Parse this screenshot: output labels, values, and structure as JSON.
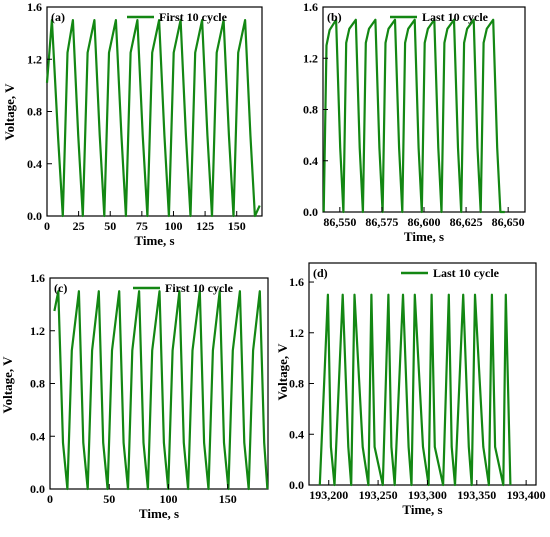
{
  "colors": {
    "series": "#138713",
    "axis": "#000000",
    "background": "#ffffff"
  },
  "chart_data": [
    {
      "type": "line",
      "panel_label": "(a)",
      "xlabel": "Time, s",
      "ylabel": "Voltage, V",
      "xlim": [
        0,
        170
      ],
      "ylim": [
        0,
        1.6
      ],
      "xticks": [
        0,
        25,
        50,
        75,
        100,
        125,
        150
      ],
      "xtick_labels": [
        "0",
        "25",
        "50",
        "75",
        "100",
        "125",
        "150"
      ],
      "yticks": [
        0,
        0.4,
        0.8,
        1.2,
        1.6
      ],
      "ytick_labels": [
        "0.0",
        "0.4",
        "0.8",
        "1.2",
        "1.6"
      ],
      "legend_position": "top-right",
      "series": [
        {
          "name": "First 10 cycle",
          "x": [
            0,
            3.9,
            8.8,
            12.5,
            16.2,
            20.5,
            24.7,
            28.3,
            32.1,
            37.5,
            41.7,
            45.3,
            49.0,
            54.5,
            58.8,
            62.4,
            66.1,
            71.5,
            75.7,
            79.4,
            83.2,
            88.6,
            92.8,
            96.4,
            100.2,
            105.6,
            109.8,
            113.5,
            117.2,
            122.6,
            126.8,
            130.5,
            134.2,
            139.6,
            143.8,
            147.5,
            151.2,
            156.6,
            160.8,
            164.4,
            168.2
          ],
          "y": [
            1.02,
            1.5,
            0.6,
            0.0,
            1.25,
            1.5,
            0.62,
            0.0,
            1.25,
            1.5,
            0.62,
            0.0,
            1.25,
            1.5,
            0.62,
            0.0,
            1.25,
            1.5,
            0.62,
            0.0,
            1.25,
            1.5,
            0.62,
            0.0,
            1.25,
            1.5,
            0.62,
            0.0,
            1.25,
            1.5,
            0.62,
            0.0,
            1.25,
            1.5,
            0.62,
            0.0,
            1.25,
            1.5,
            0.62,
            0.0,
            0.08
          ]
        }
      ]
    },
    {
      "type": "line",
      "panel_label": "(b)",
      "xlabel": "Time, s",
      "ylabel": "",
      "xlim": [
        86540,
        86660
      ],
      "ylim": [
        0,
        1.6
      ],
      "xticks": [
        86550,
        86575,
        86600,
        86625,
        86650
      ],
      "xtick_labels": [
        "86,550",
        "86,575",
        "86,600",
        "86,625",
        "86,650"
      ],
      "yticks": [
        0,
        0.4,
        0.8,
        1.2,
        1.6
      ],
      "ytick_labels": [
        "0.0",
        "0.4",
        "0.8",
        "1.2",
        "1.6"
      ],
      "legend_position": "top-right",
      "series": [
        {
          "name": "Last 10 cycle",
          "x": [
            86540.4,
            86542.1,
            86543.9,
            86547.8,
            86550.2,
            86552.1,
            86553.8,
            86555.6,
            86559.5,
            86561.8,
            86563.7,
            86565.4,
            86567.3,
            86571.1,
            86573.5,
            86575.4,
            86577.1,
            86578.9,
            86582.8,
            86585.2,
            86587.1,
            86588.8,
            86590.6,
            86594.5,
            86596.8,
            86598.7,
            86600.4,
            86602.3,
            86606.1,
            86608.5,
            86610.4,
            86612.1,
            86613.9,
            86617.8,
            86620.2,
            86622.1,
            86623.8,
            86625.6,
            86629.5,
            86631.8,
            86633.7,
            86635.4,
            86637.3,
            86641.1,
            86643.5,
            86645.4,
            86648.0
          ],
          "y": [
            0.0,
            1.3,
            1.42,
            1.5,
            0.5,
            0.0,
            1.32,
            1.43,
            1.5,
            0.5,
            0.0,
            1.32,
            1.43,
            1.5,
            0.5,
            0.0,
            1.32,
            1.43,
            1.5,
            0.5,
            0.0,
            1.32,
            1.43,
            1.5,
            0.5,
            0.0,
            1.32,
            1.43,
            1.5,
            0.5,
            0.0,
            1.32,
            1.43,
            1.5,
            0.5,
            0.0,
            1.32,
            1.43,
            1.5,
            0.5,
            0.0,
            1.32,
            1.43,
            1.5,
            0.5,
            0.0,
            0.0
          ]
        }
      ]
    },
    {
      "type": "line",
      "panel_label": "(c)",
      "xlabel": "Time, s",
      "ylabel": "Voltage, V",
      "xlim": [
        0,
        184
      ],
      "ylim": [
        0,
        1.6
      ],
      "xticks": [
        0,
        50,
        100,
        150
      ],
      "xtick_labels": [
        "0",
        "50",
        "100",
        "150"
      ],
      "yticks": [
        0,
        0.4,
        0.8,
        1.2,
        1.6
      ],
      "ytick_labels": [
        "0.0",
        "0.4",
        "0.8",
        "1.2",
        "1.6"
      ],
      "legend_position": "top-right",
      "series": [
        {
          "name": "First 10 cycle",
          "x": [
            3.7,
            7.0,
            11.0,
            14.7,
            18.4,
            24.4,
            28.1,
            31.8,
            35.5,
            41.2,
            44.9,
            48.6,
            52.3,
            58.4,
            62.1,
            65.8,
            69.5,
            75.2,
            78.9,
            82.6,
            86.3,
            92.4,
            96.1,
            99.8,
            103.5,
            109.2,
            112.9,
            116.6,
            120.3,
            126.4,
            130.1,
            133.8,
            137.5,
            143.2,
            146.9,
            150.6,
            154.3,
            160.3,
            164.0,
            167.7,
            171.4,
            177.1,
            180.8,
            183.5
          ],
          "y": [
            1.35,
            1.5,
            0.35,
            0.0,
            1.05,
            1.5,
            0.35,
            0.0,
            1.05,
            1.5,
            0.35,
            0.0,
            1.05,
            1.5,
            0.35,
            0.0,
            1.05,
            1.5,
            0.35,
            0.0,
            1.05,
            1.5,
            0.35,
            0.0,
            1.05,
            1.5,
            0.35,
            0.0,
            1.05,
            1.5,
            0.35,
            0.0,
            1.05,
            1.5,
            0.35,
            0.0,
            1.05,
            1.5,
            0.35,
            0.0,
            1.05,
            1.5,
            0.35,
            0.0
          ]
        }
      ]
    },
    {
      "type": "line",
      "panel_label": "(d)",
      "xlabel": "Time, s",
      "ylabel": "Voltage, V",
      "xlim": [
        193180,
        193410
      ],
      "ylim": [
        0,
        1.75
      ],
      "xticks": [
        193200,
        193250,
        193300,
        193350,
        193400
      ],
      "xtick_labels": [
        "193,200",
        "193,250",
        "193,300",
        "193,350",
        "193,400"
      ],
      "yticks": [
        0,
        0.4,
        0.8,
        1.2,
        1.6
      ],
      "ytick_labels": [
        "0.0",
        "0.4",
        "0.8",
        "1.2",
        "1.6"
      ],
      "legend_position": "top-right",
      "series": [
        {
          "name": "Last 10 cycle",
          "x": [
            193190.9,
            193199.2,
            193202.2,
            193205.8,
            193214.1,
            193219.8,
            193222.8,
            193226.1,
            193234.4,
            193240.2,
            193243.2,
            193246.5,
            193254.8,
            193260.5,
            193263.5,
            193266.8,
            193275.2,
            193280.9,
            193283.9,
            193287.2,
            193295.5,
            193301.2,
            193304.2,
            193307.5,
            193315.9,
            193321.6,
            193324.6,
            193327.9,
            193336.2,
            193341.9,
            193344.9,
            193348.2,
            193356.6,
            193362.3,
            193365.3,
            193368.6,
            193376.9,
            193379.4,
            193384.1
          ],
          "y": [
            0.0,
            1.5,
            0.3,
            0.0,
            1.5,
            0.3,
            0.0,
            1.5,
            0.3,
            0.0,
            1.5,
            0.3,
            0.0,
            1.5,
            0.3,
            0.0,
            1.5,
            0.3,
            0.0,
            1.5,
            0.3,
            0.0,
            1.5,
            0.3,
            0.0,
            1.5,
            0.3,
            0.0,
            1.5,
            0.3,
            0.0,
            1.5,
            0.3,
            0.0,
            1.5,
            0.3,
            0.0,
            1.5,
            0.0
          ]
        }
      ]
    }
  ]
}
